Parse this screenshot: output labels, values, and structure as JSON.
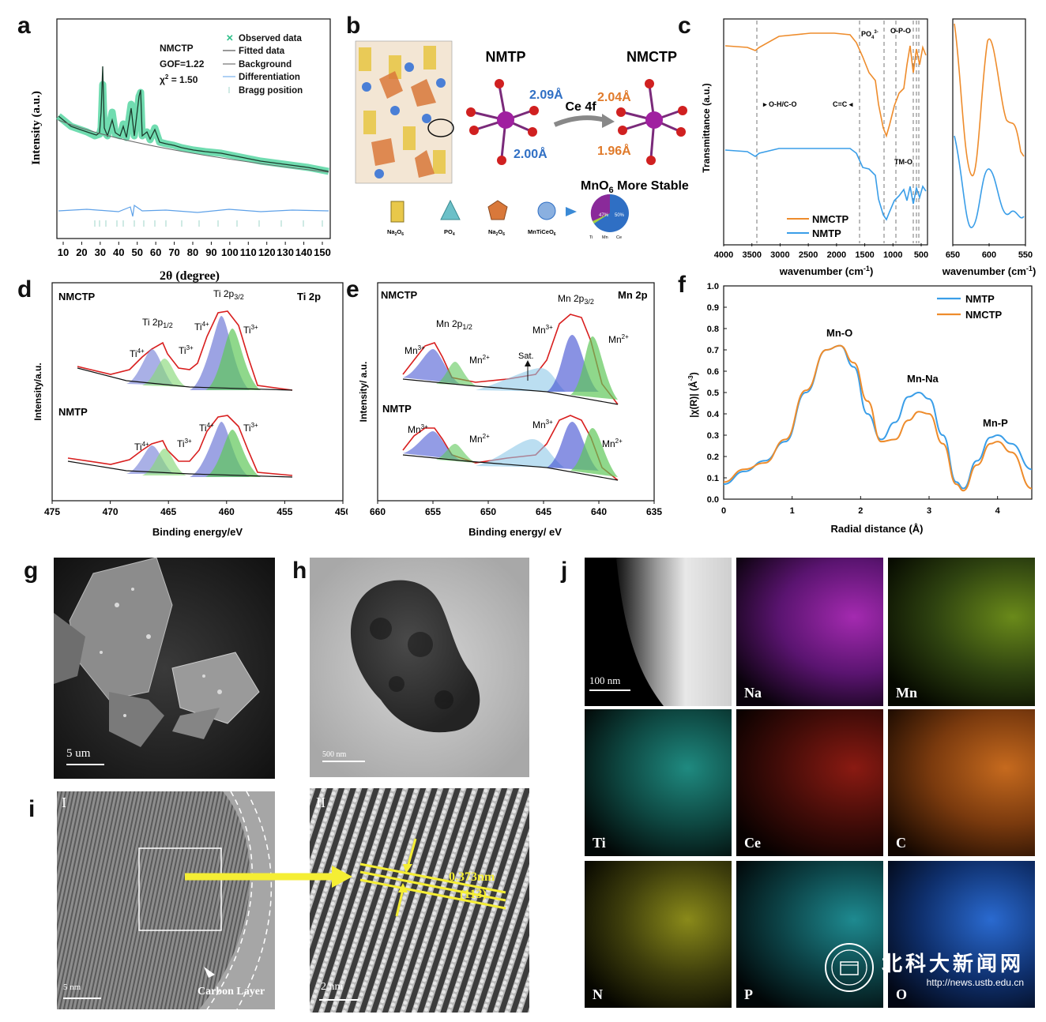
{
  "panel_labels": [
    "a",
    "b",
    "c",
    "d",
    "e",
    "f",
    "g",
    "h",
    "i",
    "j"
  ],
  "panel_a": {
    "sample": "NMCTP",
    "gof": "GOF=1.22",
    "chi2": "χ",
    "chi2_sup": "2",
    "chi2_val": " = 1.50",
    "legend": [
      "Observed data",
      "Fitted data",
      "Background",
      "Differentiation",
      "Bragg position"
    ],
    "ylabel": "Intensity (a.u.)",
    "xlabel": "2θ (degree)",
    "xticks": [
      "10",
      "20",
      "30",
      "40",
      "50",
      "60",
      "70",
      "80",
      "90",
      "100",
      "110",
      "120",
      "130",
      "140",
      "150"
    ]
  },
  "panel_b": {
    "left_title": "NMTP",
    "right_title": "NMCTP",
    "left_bonds": [
      "2.09Å",
      "2.00Å"
    ],
    "right_bonds": [
      "2.04Å",
      "1.96Å"
    ],
    "arrow_label": "Ce 4f",
    "stable_text": "MnO",
    "stable_sub": "6",
    "stable_rest": " More Stable",
    "legend_items": [
      "Na",
      "O",
      "PO",
      "Na",
      "O",
      "MnTiCeO"
    ],
    "legend_subs": [
      "2",
      "6",
      "4",
      "2",
      "6",
      "6"
    ],
    "pie_pct": [
      "47%",
      "50%"
    ],
    "pie_legend": [
      "Ti",
      "Mn",
      "Ce"
    ],
    "colors": {
      "blue": "#2f6fc4",
      "orange": "#e07a2a",
      "mn": "#a020a0",
      "o": "#d02020"
    }
  },
  "panel_c": {
    "ylabel": "Transmittance (a.u.)",
    "xlabel_main": "wavenumber (cm",
    "xlabel_inset": "wavenumber (cm",
    "xlabel_sup": "-1",
    "xlabel_close": ")",
    "xticks_main": [
      "4000",
      "3500",
      "3000",
      "2500",
      "2000",
      "1500",
      "1000",
      "500"
    ],
    "xticks_inset": [
      "650",
      "600",
      "550"
    ],
    "annotations": [
      "O-H/C-O",
      "C=C",
      "PO",
      "O-P-O",
      "TM-O"
    ],
    "po4_sup": "3-",
    "po4_sub": "4",
    "legend": [
      "NMCTP",
      "NMTP"
    ],
    "colors": {
      "NMCTP": "#ee8c2c",
      "NMTP": "#3a9ee8"
    }
  },
  "panel_d": {
    "top_label": "NMCTP",
    "bottom_label": "NMTP",
    "corner": "Ti 2p",
    "peak_labels": [
      "Ti 2p",
      "1/2",
      "Ti 2p",
      "3/2",
      "Ti",
      "4+",
      "Ti",
      "3+"
    ],
    "ylabel": "Intensity/a.u.",
    "xlabel": "Binding energy/eV",
    "xticks": [
      "475",
      "470",
      "465",
      "460",
      "455",
      "450"
    ]
  },
  "panel_e": {
    "top_label": "NMCTP",
    "bottom_label": "NMTP",
    "corner": "Mn 2p",
    "peak_labels": [
      "Mn 2p",
      "1/2",
      "Mn 2p",
      "3/2",
      "Mn",
      "3+",
      "Mn",
      "2+",
      "Sat."
    ],
    "ylabel": "Intensity/ a.u.",
    "xlabel": "Binding energy/ eV",
    "xticks": [
      "660",
      "655",
      "650",
      "645",
      "640",
      "635"
    ]
  },
  "panel_f": {
    "ylabel": "|χ(R)| (Å",
    "ylabel_sup": "-3",
    "ylabel_close": ")",
    "xlabel": "Radial distance (Å)",
    "legend": [
      "NMTP",
      "NMCTP"
    ],
    "annotations": [
      "Mn-O",
      "Mn-Na",
      "Mn-P"
    ],
    "yticks": [
      "0.0",
      "0.1",
      "0.2",
      "0.3",
      "0.4",
      "0.5",
      "0.6",
      "0.7",
      "0.8",
      "0.9",
      "1.0"
    ],
    "xticks": [
      "0",
      "1",
      "2",
      "3",
      "4"
    ]
  },
  "chart_data": [
    {
      "type": "line",
      "panel": "f",
      "xlabel": "Radial distance (Å)",
      "ylabel": "|χ(R)| (Å-3)",
      "xlim": [
        0,
        4.5
      ],
      "ylim": [
        0,
        1.0
      ],
      "legend_position": "top-right",
      "series": [
        {
          "name": "NMTP",
          "color": "#3a9ee8",
          "x": [
            0,
            0.3,
            0.6,
            0.9,
            1.2,
            1.5,
            1.7,
            1.9,
            2.1,
            2.3,
            2.5,
            2.7,
            2.85,
            3.0,
            3.2,
            3.4,
            3.5,
            3.7,
            3.9,
            4.0,
            4.2,
            4.5
          ],
          "y": [
            0.07,
            0.13,
            0.18,
            0.27,
            0.5,
            0.7,
            0.72,
            0.62,
            0.4,
            0.28,
            0.36,
            0.48,
            0.5,
            0.47,
            0.3,
            0.08,
            0.05,
            0.18,
            0.29,
            0.3,
            0.26,
            0.14
          ]
        },
        {
          "name": "NMCTP",
          "color": "#ee8c2c",
          "x": [
            0,
            0.3,
            0.6,
            0.9,
            1.2,
            1.5,
            1.7,
            1.9,
            2.1,
            2.3,
            2.5,
            2.7,
            2.85,
            3.0,
            3.2,
            3.4,
            3.5,
            3.7,
            3.9,
            4.0,
            4.2,
            4.5
          ],
          "y": [
            0.08,
            0.14,
            0.17,
            0.28,
            0.51,
            0.7,
            0.72,
            0.64,
            0.46,
            0.27,
            0.28,
            0.37,
            0.41,
            0.4,
            0.26,
            0.07,
            0.04,
            0.16,
            0.26,
            0.27,
            0.22,
            0.05
          ]
        }
      ]
    }
  ],
  "panel_g": {
    "scale": "5  um"
  },
  "panel_h": {
    "scale": "500  nm"
  },
  "panel_i": {
    "left_tag": "I",
    "right_tag": "II",
    "scale_left": "5 nm",
    "scale_right": "2  nm",
    "carbon": "Carbon Layer",
    "d_spacing": "0.373nm",
    "plane": "(113)"
  },
  "panel_j": {
    "scale": "100  nm",
    "elements": [
      "Na",
      "Mn",
      "Ti",
      "Ce",
      "C",
      "N",
      "P",
      "O"
    ]
  },
  "watermark": {
    "title": "北科大新闻网",
    "url": "http://news.ustb.edu.cn"
  }
}
